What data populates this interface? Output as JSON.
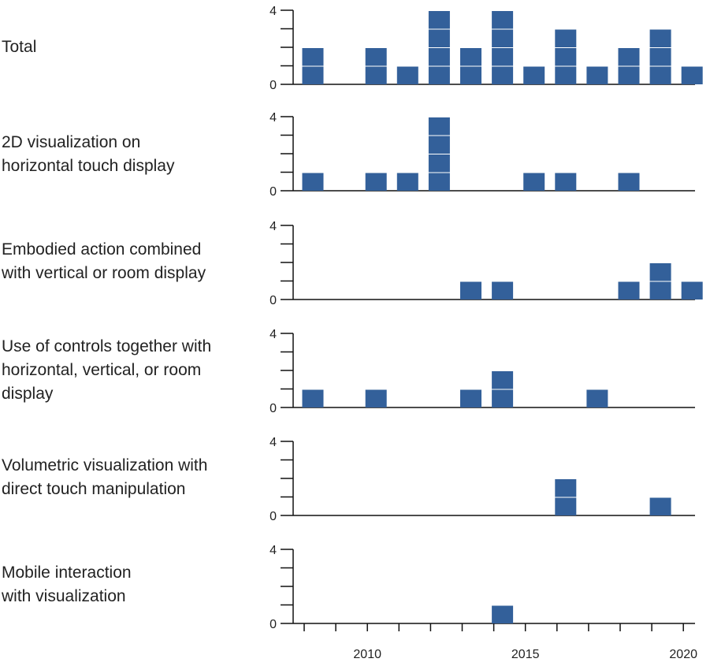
{
  "chart_data": {
    "type": "bar",
    "style": "stacked unit squares (one square per publication)",
    "x": [
      2008,
      2009,
      2010,
      2011,
      2012,
      2013,
      2014,
      2015,
      2016,
      2017,
      2018,
      2019,
      2020
    ],
    "xlim": [
      2007.5,
      2020.5
    ],
    "x_ticks": [
      2010,
      2015,
      2020
    ],
    "ylim": [
      0,
      4
    ],
    "y_ticks": [
      0,
      4
    ],
    "color": "#33609a",
    "panels": [
      {
        "label": [
          "Total"
        ],
        "values": [
          2,
          0,
          2,
          1,
          4,
          2,
          4,
          1,
          3,
          1,
          2,
          3,
          1
        ]
      },
      {
        "label": [
          "2D visualization on",
          "horizontal touch display"
        ],
        "values": [
          1,
          0,
          1,
          1,
          4,
          0,
          0,
          1,
          1,
          0,
          1,
          0,
          0
        ]
      },
      {
        "label": [
          "Embodied action combined",
          "with vertical or room display"
        ],
        "values": [
          0,
          0,
          0,
          0,
          0,
          1,
          1,
          0,
          0,
          0,
          1,
          2,
          1
        ]
      },
      {
        "label": [
          "Use of controls together with",
          "horizontal, vertical, or room",
          "display"
        ],
        "values": [
          1,
          0,
          1,
          0,
          0,
          1,
          2,
          0,
          0,
          1,
          0,
          0,
          0
        ]
      },
      {
        "label": [
          "Volumetric visualization with",
          "direct touch manipulation"
        ],
        "values": [
          0,
          0,
          0,
          0,
          0,
          0,
          0,
          0,
          2,
          0,
          0,
          1,
          0
        ]
      },
      {
        "label": [
          "Mobile interaction",
          "with visualization"
        ],
        "values": [
          0,
          0,
          0,
          0,
          0,
          0,
          1,
          0,
          0,
          0,
          0,
          0,
          0
        ]
      }
    ]
  }
}
